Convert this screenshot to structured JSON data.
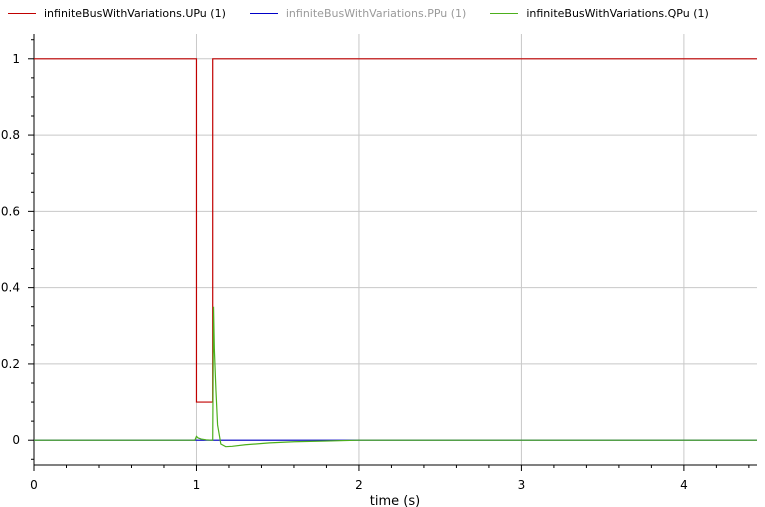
{
  "chart_data": {
    "type": "line",
    "title": "",
    "xlabel": "time (s)",
    "ylabel": "",
    "xlim": [
      0,
      4.45
    ],
    "ylim": [
      -0.065,
      1.065
    ],
    "grid": true,
    "legend_placement": "top",
    "x_ticks": [
      "0",
      "1",
      "2",
      "3",
      "4"
    ],
    "y_ticks": [
      "0",
      "0.2",
      "0.4",
      "0.6",
      "0.8",
      "1"
    ],
    "series": [
      {
        "name": "infiniteBusWithVariations.UPu (1)",
        "color": "#c00000",
        "muted": false,
        "x": [
          0,
          1.0,
          1.0,
          1.1,
          1.1,
          4.45
        ],
        "y": [
          1,
          1,
          0.1,
          0.1,
          1,
          1
        ]
      },
      {
        "name": "infiniteBusWithVariations.PPu (1)",
        "color": "#0000c8",
        "muted": true,
        "x": [
          0,
          4.45
        ],
        "y": [
          0,
          0
        ]
      },
      {
        "name": "infiniteBusWithVariations.QPu (1)",
        "color": "#4caf1c",
        "muted": false,
        "x": [
          0,
          0.99,
          1.0,
          1.01,
          1.03,
          1.06,
          1.09,
          1.1,
          1.105,
          1.11,
          1.12,
          1.13,
          1.15,
          1.18,
          1.22,
          1.3,
          1.45,
          1.6,
          1.8,
          2.0,
          4.45
        ],
        "y": [
          0,
          0,
          0.01,
          0.006,
          0.003,
          0.001,
          0.0,
          0.0,
          0.35,
          0.24,
          0.13,
          0.04,
          -0.01,
          -0.017,
          -0.016,
          -0.012,
          -0.007,
          -0.004,
          -0.002,
          0,
          0
        ]
      }
    ]
  }
}
